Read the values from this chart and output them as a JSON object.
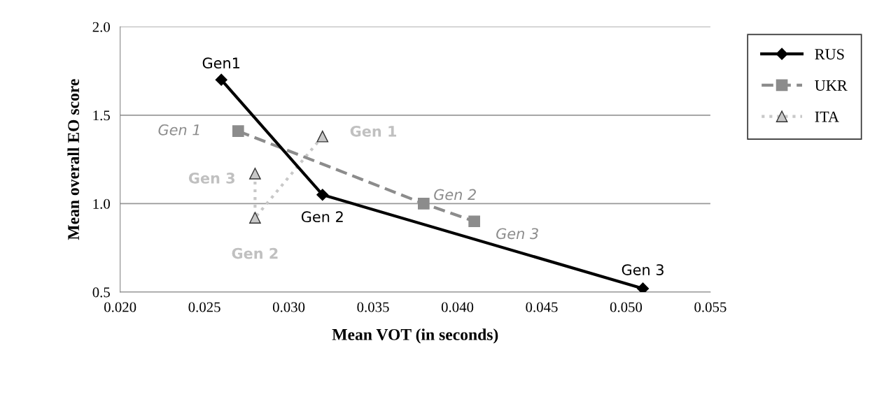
{
  "chart_data": {
    "type": "line",
    "xlabel": "Mean VOT (in seconds)",
    "ylabel": "Mean overall EO score",
    "xlim": [
      0.02,
      0.055
    ],
    "xticks": [
      {
        "value": 0.02,
        "label": "0.020"
      },
      {
        "value": 0.025,
        "label": "0.025"
      },
      {
        "value": 0.03,
        "label": "0.030"
      },
      {
        "value": 0.035,
        "label": "0.035"
      },
      {
        "value": 0.04,
        "label": "0.040"
      },
      {
        "value": 0.045,
        "label": "0.045"
      },
      {
        "value": 0.05,
        "label": "0.050"
      },
      {
        "value": 0.055,
        "label": "0.055"
      }
    ],
    "ylim": [
      0.5,
      2.0
    ],
    "yticks": [
      {
        "value": 0.5,
        "label": "0.5"
      },
      {
        "value": 1.0,
        "label": "1.0"
      },
      {
        "value": 1.5,
        "label": "1.5"
      },
      {
        "value": 2.0,
        "label": "2.0"
      }
    ],
    "grid": "y",
    "legend": "right",
    "series": [
      {
        "name": "RUS",
        "color": "#000000",
        "marker": "diamond",
        "line_style": "solid",
        "x": [
          0.026,
          0.032,
          0.051
        ],
        "values": [
          1.7,
          1.05,
          0.52
        ]
      },
      {
        "name": "UKR",
        "color": "#8c8c8c",
        "marker": "square",
        "line_style": "dashed",
        "x": [
          0.027,
          0.038,
          0.041
        ],
        "values": [
          1.41,
          1.0,
          0.9
        ]
      },
      {
        "name": "ITA",
        "color": "#c8c8c8",
        "marker": "triangle",
        "line_style": "dotted",
        "x": [
          0.032,
          0.028,
          0.028
        ],
        "values": [
          1.38,
          0.92,
          1.17
        ]
      }
    ],
    "annotations": [
      {
        "text": "Gen1",
        "x": 0.026,
        "y": 1.7
      },
      {
        "text": "Gen 2",
        "x": 0.032,
        "y": 1.05
      },
      {
        "text": "Gen 3",
        "x": 0.051,
        "y": 0.52
      },
      {
        "text": "Gen 1",
        "x": 0.027,
        "y": 1.41
      },
      {
        "text": "Gen 2",
        "x": 0.038,
        "y": 1.0
      },
      {
        "text": "Gen 3",
        "x": 0.041,
        "y": 0.9
      },
      {
        "text": "Gen 1",
        "x": 0.032,
        "y": 1.38
      },
      {
        "text": "Gen 2",
        "x": 0.028,
        "y": 0.92
      },
      {
        "text": "Gen 3",
        "x": 0.028,
        "y": 1.17
      }
    ]
  }
}
